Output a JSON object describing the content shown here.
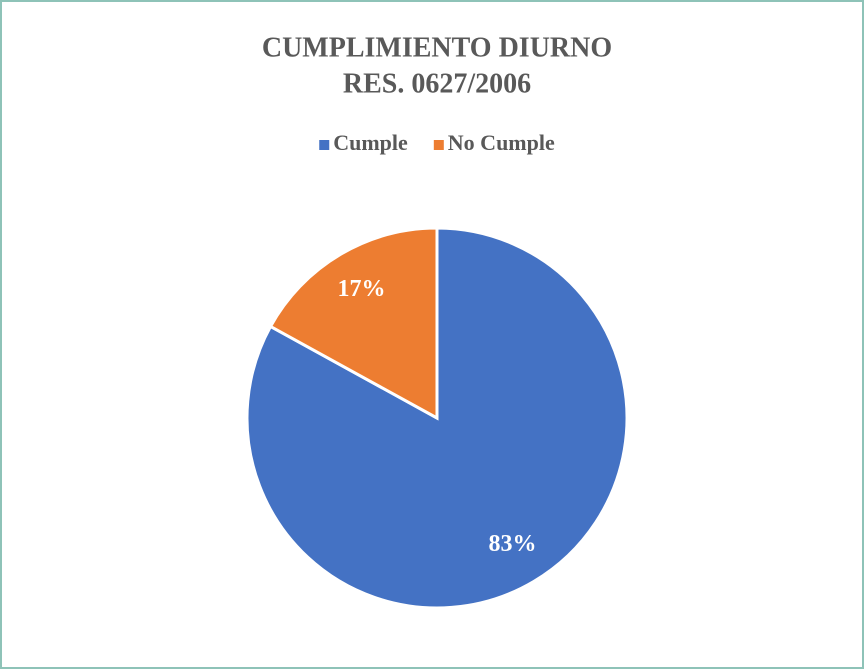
{
  "chart_data": {
    "type": "pie",
    "title": "CUMPLIMIENTO DIURNO",
    "subtitle": "RES. 0627/2006",
    "categories": [
      "Cumple",
      "No Cumple"
    ],
    "values": [
      83,
      17
    ],
    "value_labels": [
      "83%",
      "17%"
    ],
    "colors": [
      "#4472c4",
      "#ed7d31"
    ],
    "legend": "top"
  }
}
